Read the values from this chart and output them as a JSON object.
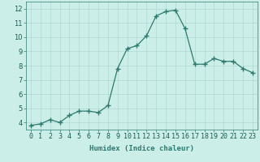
{
  "x": [
    0,
    1,
    2,
    3,
    4,
    5,
    6,
    7,
    8,
    9,
    10,
    11,
    12,
    13,
    14,
    15,
    16,
    17,
    18,
    19,
    20,
    21,
    22,
    23
  ],
  "y": [
    3.8,
    3.9,
    4.2,
    4.0,
    4.5,
    4.8,
    4.8,
    4.7,
    5.2,
    7.8,
    9.2,
    9.4,
    10.1,
    11.5,
    11.8,
    11.9,
    10.6,
    8.1,
    8.1,
    8.5,
    8.3,
    8.3,
    7.8,
    7.5
  ],
  "line_color": "#2d7a6e",
  "marker": "+",
  "marker_size": 4,
  "bg_color": "#cceee8",
  "grid_color": "#b0d8d4",
  "xlabel": "Humidex (Indice chaleur)",
  "xlabel_fontsize": 6.5,
  "tick_fontsize": 6,
  "ylim": [
    3.5,
    12.5
  ],
  "yticks": [
    4,
    5,
    6,
    7,
    8,
    9,
    10,
    11,
    12
  ],
  "xlim": [
    -0.5,
    23.5
  ],
  "xticks": [
    0,
    1,
    2,
    3,
    4,
    5,
    6,
    7,
    8,
    9,
    10,
    11,
    12,
    13,
    14,
    15,
    16,
    17,
    18,
    19,
    20,
    21,
    22,
    23
  ]
}
